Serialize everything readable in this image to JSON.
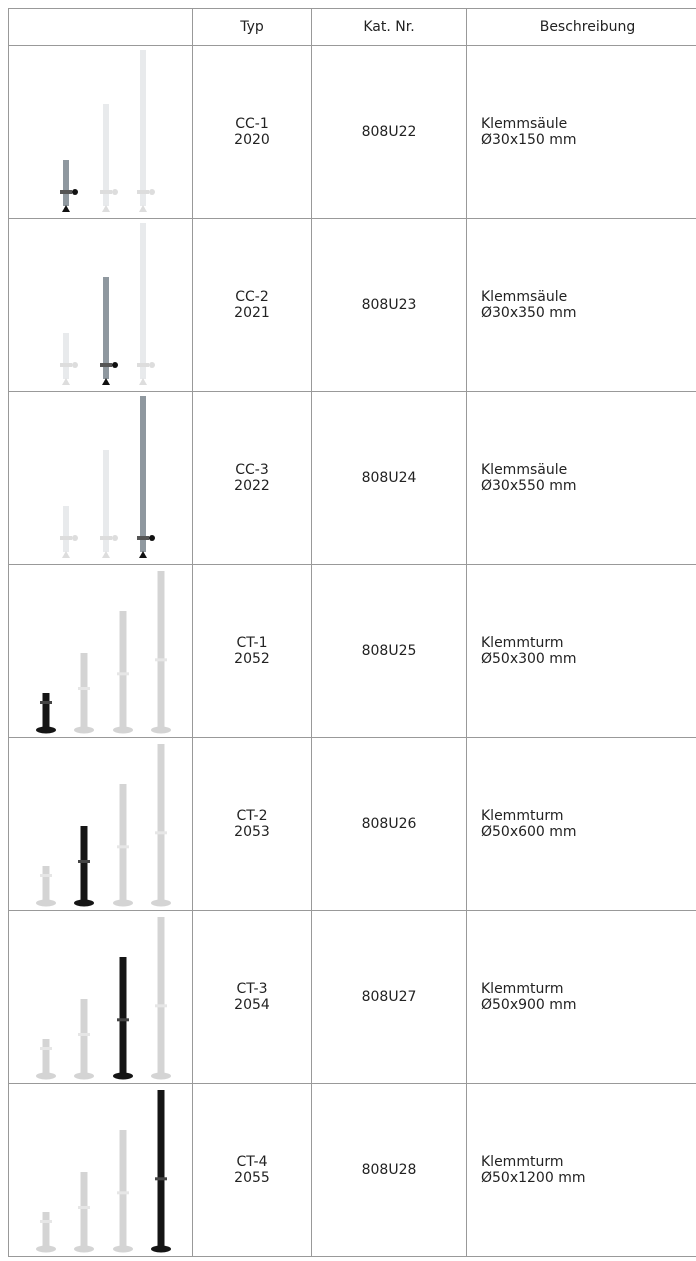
{
  "table": {
    "header": [
      "Typ",
      "Kat. Nr.",
      "Beschreibung"
    ],
    "rows": [
      {
        "type": [
          "CC-1",
          "2020"
        ],
        "cat": "808U22",
        "desc": [
          "Klemmsäule",
          "Ø30x150 mm"
        ]
      },
      {
        "type": [
          "CC-2",
          "2021"
        ],
        "cat": "808U23",
        "desc": [
          "Klemmsäule",
          "Ø30x350 mm"
        ]
      },
      {
        "type": [
          "CC-3",
          "2022"
        ],
        "cat": "808U24",
        "desc": [
          "Klemmsäule",
          "Ø30x550 mm"
        ]
      },
      {
        "type": [
          "CT-1",
          "2052"
        ],
        "cat": "808U25",
        "desc": [
          "Klemmturm",
          "Ø50x300 mm"
        ]
      },
      {
        "type": [
          "CT-2",
          "2053"
        ],
        "cat": "808U26",
        "desc": [
          "Klemmturm",
          "Ø50x600 mm"
        ]
      },
      {
        "type": [
          "CT-3",
          "2054"
        ],
        "cat": "808U27",
        "desc": [
          "Klemmturm",
          "Ø50x900 mm"
        ]
      },
      {
        "type": [
          "CT-4",
          "2055"
        ],
        "cat": "808U28",
        "desc": [
          "Klemmturm",
          "Ø50x1200 mm"
        ]
      }
    ]
  }
}
